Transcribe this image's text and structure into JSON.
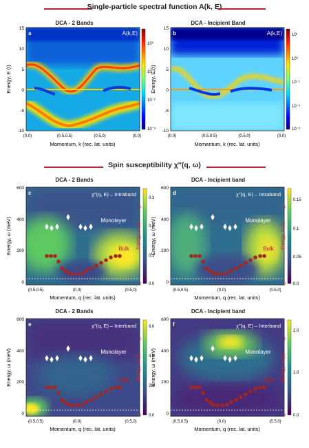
{
  "section_top": "Single-particle spectral function A(k, E)",
  "section_bottom": "Spin susceptibility χ″(q, ω)",
  "colors": {
    "accent_red": "#b0282e",
    "bulk_marker": "#a3261f",
    "monolayer_marker": "#ffffff"
  },
  "top_panels": {
    "a": {
      "title": "DCA - 2 Bands",
      "letter": "a",
      "label": "A(k,E)",
      "cbar_ticks": [
        "10⁰",
        "10⁻¹",
        "10⁻²",
        "10⁻³"
      ]
    },
    "b": {
      "title": "DCA - Incipient Band",
      "letter": "b",
      "label": "A(k,E)",
      "cbar_ticks": [
        "10¹",
        "10⁰",
        "10⁻¹",
        "10⁻²",
        "10⁻³"
      ]
    },
    "ylabel": "Energy, E (t)",
    "yticks": [
      "15",
      "10",
      "5",
      "0",
      "-5",
      "-10"
    ],
    "xlabel": "Momentum, k (rec. lat. units)",
    "xticks": [
      "(0,0)",
      "(0.5,0.5)",
      "(0.5,0)",
      "(0,0)"
    ]
  },
  "bottom_panels": {
    "c": {
      "title": "DCA - 2 Bands",
      "letter": "c",
      "label": "χ″(q, E) – Intraband",
      "cbar_ticks": [
        "0.3",
        "0.2",
        "0.1",
        "0.0"
      ],
      "right_ticks": [
        "6",
        "0"
      ]
    },
    "d": {
      "title": "DCA - Incipient band",
      "letter": "d",
      "label": "χ″(q, E) – Intraband",
      "cbar_ticks": [
        "0.15",
        "0.1",
        "0.05",
        "0.0"
      ],
      "right_ticks": [
        "3",
        "0"
      ]
    },
    "e": {
      "title": "DCA - 2 Bands",
      "letter": "e",
      "label": "χ″(q, E) – Interband",
      "cbar_ticks": [
        "6.0",
        "4.0",
        "2.0",
        "0.0"
      ],
      "right_ticks": [
        "6",
        "0"
      ]
    },
    "f": {
      "title": "DCA - Incipient band",
      "letter": "f",
      "label": "χ″(q, E) – Interband",
      "cbar_ticks": [
        "2.0",
        "1.0",
        "0.0"
      ],
      "right_ticks": [
        "3",
        "0"
      ]
    },
    "ylabel": "Energy, ω (meV)",
    "yticks": [
      "600",
      "400",
      "200",
      "0"
    ],
    "right_ylabel": "Energy, ω (t)",
    "xlabel": "Momentum, q (rec. lat. units)",
    "xticks": [
      "(0.5,0.5)",
      "(0,0)",
      "(0.5,0)"
    ],
    "monolayer_label": "Monolayer",
    "bulk_label": "Bulk"
  },
  "chart_data": [
    {
      "type": "heatmap",
      "panel": "a",
      "title": "DCA - 2 Bands",
      "xlabel": "Momentum, k (rec. lat. units)",
      "ylabel": "Energy, E (t)",
      "ylim": [
        -10,
        15
      ],
      "x_ticks": [
        "(0,0)",
        "(0.5,0.5)",
        "(0.5,0)",
        "(0,0)"
      ],
      "colorbar": "log",
      "colorbar_range": [
        0.001,
        1
      ]
    },
    {
      "type": "heatmap",
      "panel": "b",
      "title": "DCA - Incipient Band",
      "xlabel": "Momentum, k (rec. lat. units)",
      "ylabel": "Energy, E (t)",
      "ylim": [
        -10,
        15
      ],
      "x_ticks": [
        "(0,0)",
        "(0.5,0.5)",
        "(0.5,0)",
        "(0,0)"
      ],
      "colorbar": "log",
      "colorbar_range": [
        0.001,
        10
      ]
    },
    {
      "type": "heatmap",
      "panel": "c",
      "title": "DCA - 2 Bands",
      "xlabel": "Momentum, q (rec. lat. units)",
      "ylabel": "Energy, ω (meV)",
      "ylim": [
        0,
        600
      ],
      "colorbar_range": [
        0,
        0.3
      ]
    },
    {
      "type": "heatmap",
      "panel": "d",
      "title": "DCA - Incipient band",
      "xlabel": "Momentum, q (rec. lat. units)",
      "ylabel": "Energy, ω (meV)",
      "ylim": [
        0,
        600
      ],
      "colorbar_range": [
        0,
        0.18
      ]
    },
    {
      "type": "heatmap",
      "panel": "e",
      "title": "DCA - 2 Bands",
      "xlabel": "Momentum, q (rec. lat. units)",
      "ylabel": "Energy, ω (meV)",
      "ylim": [
        0,
        600
      ],
      "colorbar_range": [
        0,
        6.5
      ]
    },
    {
      "type": "heatmap",
      "panel": "f",
      "title": "DCA - Incipient band",
      "xlabel": "Momentum, q (rec. lat. units)",
      "ylabel": "Energy, ω (meV)",
      "ylim": [
        0,
        600
      ],
      "colorbar_range": [
        0,
        2.2
      ]
    },
    {
      "type": "scatter",
      "name": "Monolayer",
      "x": [
        -0.42,
        -0.37,
        -0.31,
        0.0,
        0.31,
        0.37,
        0.42
      ],
      "y": [
        350,
        340,
        355,
        410,
        350,
        340,
        355
      ]
    },
    {
      "type": "scatter",
      "name": "Bulk",
      "x": [
        -0.5,
        -0.44,
        -0.38,
        -0.32,
        -0.26,
        -0.2,
        -0.14,
        -0.08,
        0.0,
        0.08,
        0.14,
        0.2,
        0.26,
        0.32,
        0.38,
        0.44,
        0.5
      ],
      "y": [
        165,
        165,
        165,
        140,
        105,
        85,
        75,
        70,
        70,
        75,
        85,
        105,
        120,
        135,
        150,
        165,
        165
      ]
    }
  ]
}
